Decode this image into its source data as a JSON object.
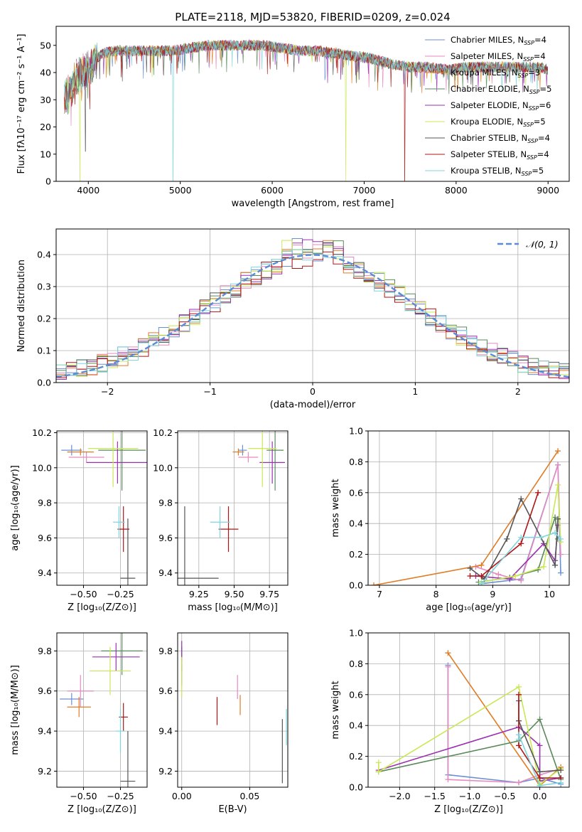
{
  "figure_title": "PLATE=2118, MJD=53820, FIBERID=0209, z=0.024",
  "colors": {
    "chabrier_miles": "#6a8fd3",
    "salpeter_miles": "#e58ac0",
    "kroupa_miles": "#e07b26",
    "chabrier_elodie": "#5a8a5a",
    "salpeter_elodie": "#9b30b0",
    "kroupa_elodie": "#c9e855",
    "chabrier_stelib": "#555555",
    "salpeter_stelib": "#b01515",
    "kroupa_stelib": "#7fd5dc",
    "gauss": "#5b8bd6"
  },
  "chart_data": [
    {
      "id": "spectrum",
      "type": "line",
      "title": "PLATE=2118, MJD=53820, FIBERID=0209, z=0.024",
      "xlabel": "wavelength [Angstrom, rest frame]",
      "ylabel": "Flux [fλ10⁻¹⁷ erg cm⁻² s⁻¹ A⁻¹]",
      "xlim": [
        3650,
        9230
      ],
      "ylim": [
        0,
        57
      ],
      "xticks": [
        4000,
        5000,
        6000,
        7000,
        8000,
        9000
      ],
      "yticks": [
        0,
        10,
        20,
        30,
        40,
        50
      ],
      "grid": false,
      "legend_position": "top-right",
      "series": [
        {
          "key": "chabrier_miles",
          "name": "Chabrier MILES, N",
          "sub": "SSP",
          "tail": "=4"
        },
        {
          "key": "salpeter_miles",
          "name": "Salpeter MILES, N",
          "sub": "SSP",
          "tail": "=4"
        },
        {
          "key": "kroupa_miles",
          "name": "Kroupa MILES, N",
          "sub": "SSP",
          "tail": "=3"
        },
        {
          "key": "chabrier_elodie",
          "name": "Chabrier ELODIE, N",
          "sub": "SSP",
          "tail": "=5"
        },
        {
          "key": "salpeter_elodie",
          "name": "Salpeter ELODIE, N",
          "sub": "SSP",
          "tail": "=6"
        },
        {
          "key": "kroupa_elodie",
          "name": "Kroupa ELODIE, N",
          "sub": "SSP",
          "tail": "=5"
        },
        {
          "key": "chabrier_stelib",
          "name": "Chabrier STELIB, N",
          "sub": "SSP",
          "tail": "=4"
        },
        {
          "key": "salpeter_stelib",
          "name": "Salpeter STELIB, N",
          "sub": "SSP",
          "tail": "=4"
        },
        {
          "key": "kroupa_stelib",
          "name": "Kroupa STELIB, N",
          "sub": "SSP",
          "tail": "=5"
        }
      ],
      "continuum": {
        "x": [
          3740,
          3850,
          3950,
          4050,
          4150,
          4300,
          4500,
          4700,
          4900,
          5100,
          5300,
          5500,
          5700,
          5900,
          6100,
          6300,
          6500,
          6700,
          6900,
          7100,
          7300,
          7500,
          7700,
          7900,
          8100,
          8300,
          8500,
          8700,
          8900,
          9000
        ],
        "y": [
          30,
          37,
          40,
          44,
          47,
          48,
          48,
          48,
          48,
          49,
          50,
          50,
          50,
          50,
          49,
          48,
          48,
          47,
          46,
          45,
          43,
          42,
          42,
          41,
          42,
          42,
          42,
          42,
          42,
          41
        ]
      },
      "dips": [
        {
          "series": "kroupa_elodie",
          "x": 3910,
          "y": 0
        },
        {
          "series": "chabrier_stelib",
          "x": 3970,
          "y": 11
        },
        {
          "series": "kroupa_stelib",
          "x": 4920,
          "y": 0
        },
        {
          "series": "kroupa_elodie",
          "x": 6800,
          "y": 0
        },
        {
          "series": "salpeter_stelib",
          "x": 7440,
          "y": 0
        }
      ]
    },
    {
      "id": "residuals",
      "type": "bar",
      "xlabel": "(data-model)/error",
      "ylabel": "Normed distribution",
      "xlim": [
        -2.5,
        2.5
      ],
      "ylim": [
        0,
        0.48
      ],
      "xticks": [
        -2,
        -1,
        0,
        1,
        2
      ],
      "yticks": [
        0.0,
        0.1,
        0.2,
        0.3,
        0.4
      ],
      "grid": true,
      "legend_position": "top-right",
      "legend": [
        {
          "label": "𝒩(0, 1)",
          "style": "dashed"
        }
      ],
      "bin_width": 0.1,
      "gaussian": {
        "mean": 0,
        "sigma": 1
      }
    },
    {
      "id": "age_vs_Z",
      "type": "scatter",
      "xlabel": "Z [log₁₀(Z/Z⊙)]",
      "ylabel": "age  [log₁₀(age/yr)]",
      "xlim": [
        -0.68,
        -0.07
      ],
      "ylim": [
        9.33,
        10.21
      ],
      "xticks": [
        -0.5,
        -0.25
      ],
      "yticks": [
        9.4,
        9.6,
        9.8,
        10.0,
        10.2
      ],
      "grid": true,
      "points": [
        {
          "series": "chabrier_miles",
          "x": -0.58,
          "y": 10.1,
          "xerr": 0.07,
          "yerr": 0.03
        },
        {
          "series": "salpeter_miles",
          "x": -0.48,
          "y": 10.06,
          "xerr": 0.12,
          "yerr": 0.03
        },
        {
          "series": "kroupa_miles",
          "x": -0.52,
          "y": 10.09,
          "xerr": 0.09,
          "yerr": 0.02
        },
        {
          "series": "chabrier_elodie",
          "x": -0.24,
          "y": 10.1,
          "xerr": 0.16,
          "yerr": 0.23
        },
        {
          "series": "salpeter_elodie",
          "x": -0.27,
          "y": 10.03,
          "xerr": 0.21,
          "yerr": 0.12
        },
        {
          "series": "kroupa_elodie",
          "x": -0.3,
          "y": 10.11,
          "xerr": 0.17,
          "yerr": 0.22
        },
        {
          "series": "chabrier_stelib",
          "x": -0.2,
          "y": 9.37,
          "xerr": 0.05,
          "yerr": 0.34
        },
        {
          "series": "salpeter_stelib",
          "x": -0.23,
          "y": 9.65,
          "xerr": 0.04,
          "yerr": 0.13
        },
        {
          "series": "kroupa_stelib",
          "x": -0.26,
          "y": 9.69,
          "xerr": 0.04,
          "yerr": 0.09
        }
      ]
    },
    {
      "id": "age_vs_mass",
      "type": "scatter",
      "xlabel": "mass [log₁₀(M/M⊙)]",
      "ylabel": "",
      "xlim": [
        9.1,
        9.88
      ],
      "ylim": [
        9.33,
        10.21
      ],
      "xticks": [
        9.25,
        9.5,
        9.75
      ],
      "yticks": [
        9.4,
        9.6,
        9.8,
        10.0,
        10.2
      ],
      "grid": true,
      "points": [
        {
          "series": "chabrier_miles",
          "x": 9.56,
          "y": 10.1,
          "xerr": 0.03,
          "yerr": 0.03
        },
        {
          "series": "salpeter_miles",
          "x": 9.6,
          "y": 10.06,
          "xerr": 0.07,
          "yerr": 0.03
        },
        {
          "series": "kroupa_miles",
          "x": 9.53,
          "y": 10.09,
          "xerr": 0.04,
          "yerr": 0.02
        },
        {
          "series": "chabrier_elodie",
          "x": 9.79,
          "y": 10.1,
          "xerr": 0.06,
          "yerr": 0.23
        },
        {
          "series": "salpeter_elodie",
          "x": 9.77,
          "y": 10.03,
          "xerr": 0.09,
          "yerr": 0.12
        },
        {
          "series": "kroupa_elodie",
          "x": 9.7,
          "y": 10.11,
          "xerr": 0.1,
          "yerr": 0.22
        },
        {
          "series": "chabrier_stelib",
          "x": 9.15,
          "y": 9.37,
          "xerr": 0.24,
          "yerr": 0.41
        },
        {
          "series": "salpeter_stelib",
          "x": 9.46,
          "y": 9.65,
          "xerr": 0.07,
          "yerr": 0.13
        },
        {
          "series": "kroupa_stelib",
          "x": 9.4,
          "y": 9.69,
          "xerr": 0.07,
          "yerr": 0.09
        }
      ]
    },
    {
      "id": "weight_vs_age",
      "type": "line",
      "xlabel": "age  [log₁₀(age/yr)]",
      "ylabel": "mass weight",
      "xlim": [
        6.8,
        10.35
      ],
      "ylim": [
        0,
        1
      ],
      "xticks": [
        7,
        8,
        9,
        10
      ],
      "yticks": [
        0.0,
        0.2,
        0.4,
        0.6,
        0.8,
        1.0
      ],
      "grid": true,
      "series": [
        {
          "series": "chabrier_miles",
          "x": [
            8.8,
            9.5,
            10.15,
            10.2
          ],
          "y": [
            0.01,
            0.04,
            0.78,
            0.08
          ]
        },
        {
          "series": "salpeter_miles",
          "x": [
            8.7,
            9.1,
            9.5,
            10.15,
            10.2
          ],
          "y": [
            0.12,
            0.07,
            0.03,
            0.78,
            0.2
          ]
        },
        {
          "series": "kroupa_miles",
          "x": [
            6.9,
            8.8,
            10.15
          ],
          "y": [
            0.0,
            0.13,
            0.87
          ]
        },
        {
          "series": "chabrier_elodie",
          "x": [
            8.75,
            9.3,
            9.8,
            10.1,
            10.15
          ],
          "y": [
            0.02,
            0.05,
            0.1,
            0.44,
            0.3
          ]
        },
        {
          "series": "salpeter_elodie",
          "x": [
            8.7,
            9.3,
            9.9,
            10.1,
            10.15
          ],
          "y": [
            0.06,
            0.04,
            0.27,
            0.16,
            0.39
          ]
        },
        {
          "series": "kroupa_elodie",
          "x": [
            8.8,
            9.4,
            9.9,
            10.15,
            10.2
          ],
          "y": [
            0.02,
            0.06,
            0.12,
            0.65,
            0.28
          ]
        },
        {
          "series": "chabrier_stelib",
          "x": [
            8.6,
            8.85,
            9.25,
            9.5,
            10.1,
            10.15
          ],
          "y": [
            0.11,
            0.04,
            0.3,
            0.56,
            0.13,
            0.43
          ]
        },
        {
          "series": "salpeter_stelib",
          "x": [
            8.6,
            8.8,
            9.5,
            9.8
          ],
          "y": [
            0.06,
            0.06,
            0.27,
            0.6
          ]
        },
        {
          "series": "kroupa_stelib",
          "x": [
            8.8,
            9.5,
            9.85,
            10.1,
            10.2
          ],
          "y": [
            0.01,
            0.31,
            0.31,
            0.34,
            0.3
          ]
        }
      ]
    },
    {
      "id": "mass_vs_Z",
      "type": "scatter",
      "xlabel": "Z [log₁₀(Z/Z⊙)]",
      "ylabel": "mass [log₁₀(M/M⊙)]",
      "xlim": [
        -0.68,
        -0.07
      ],
      "ylim": [
        9.12,
        9.89
      ],
      "xticks": [
        -0.5,
        -0.25
      ],
      "yticks": [
        9.2,
        9.4,
        9.6,
        9.8
      ],
      "grid": true,
      "points": [
        {
          "series": "chabrier_miles",
          "x": -0.58,
          "y": 9.56,
          "xerr": 0.08,
          "yerr": 0.03
        },
        {
          "series": "salpeter_miles",
          "x": -0.52,
          "y": 9.6,
          "xerr": 0.09,
          "yerr": 0.08
        },
        {
          "series": "kroupa_miles",
          "x": -0.53,
          "y": 9.52,
          "xerr": 0.08,
          "yerr": 0.05
        },
        {
          "series": "chabrier_elodie",
          "x": -0.24,
          "y": 9.8,
          "xerr": 0.14,
          "yerr": 0.12
        },
        {
          "series": "salpeter_elodie",
          "x": -0.28,
          "y": 9.77,
          "xerr": 0.16,
          "yerr": 0.07
        },
        {
          "series": "kroupa_elodie",
          "x": -0.32,
          "y": 9.7,
          "xerr": 0.14,
          "yerr": 0.12
        },
        {
          "series": "chabrier_stelib",
          "x": -0.2,
          "y": 9.15,
          "xerr": 0.05,
          "yerr": 0.25
        },
        {
          "series": "salpeter_stelib",
          "x": -0.23,
          "y": 9.47,
          "xerr": 0.03,
          "yerr": 0.07
        },
        {
          "series": "kroupa_stelib",
          "x": -0.25,
          "y": 9.4,
          "xerr": 0.03,
          "yerr": 0.11
        }
      ]
    },
    {
      "id": "mass_vs_EBV",
      "type": "scatter",
      "xlabel": "E(B-V)",
      "ylabel": "",
      "xlim": [
        -0.003,
        0.078
      ],
      "ylim": [
        9.12,
        9.89
      ],
      "xticks": [
        0.0,
        0.05
      ],
      "yticks": [
        9.2,
        9.4,
        9.6,
        9.8
      ],
      "grid": true,
      "points": [
        {
          "series": "chabrier_miles",
          "x": 0.0,
          "y": 9.68,
          "xerr": 0,
          "yerr": 0.05
        },
        {
          "series": "salpeter_miles",
          "x": 0.041,
          "y": 9.62,
          "xerr": 0,
          "yerr": 0.06
        },
        {
          "series": "kroupa_miles",
          "x": 0.043,
          "y": 9.53,
          "xerr": 0,
          "yerr": 0.05
        },
        {
          "series": "chabrier_elodie",
          "x": 0.0,
          "y": 9.76,
          "xerr": 0,
          "yerr": 0.06
        },
        {
          "series": "salpeter_elodie",
          "x": 0.0,
          "y": 9.8,
          "xerr": 0,
          "yerr": 0.05
        },
        {
          "series": "kroupa_elodie",
          "x": 0.0,
          "y": 9.67,
          "xerr": 0,
          "yerr": 0.1
        },
        {
          "series": "chabrier_stelib",
          "x": 0.074,
          "y": 9.3,
          "xerr": 0,
          "yerr": 0.16
        },
        {
          "series": "salpeter_stelib",
          "x": 0.026,
          "y": 9.5,
          "xerr": 0,
          "yerr": 0.07
        },
        {
          "series": "kroupa_stelib",
          "x": 0.077,
          "y": 9.42,
          "xerr": 0,
          "yerr": 0.09
        }
      ]
    },
    {
      "id": "weight_vs_Z",
      "type": "line",
      "xlabel": "Z [log₁₀(Z/Z⊙)]",
      "ylabel": "mass weight",
      "xlim": [
        -2.45,
        0.42
      ],
      "ylim": [
        0,
        1
      ],
      "xticks": [
        -2.0,
        -1.5,
        -1.0,
        -0.5,
        0.0
      ],
      "yticks": [
        0.0,
        0.2,
        0.4,
        0.6,
        0.8,
        1.0
      ],
      "grid": true,
      "series": [
        {
          "series": "chabrier_miles",
          "x": [
            -1.31,
            -1.31,
            -0.3,
            0.0,
            0.3
          ],
          "y": [
            0.79,
            0.08,
            0.03,
            0.06,
            0.02
          ]
        },
        {
          "series": "salpeter_miles",
          "x": [
            -1.31,
            -1.31,
            -0.3,
            0.0,
            0.3
          ],
          "y": [
            0.78,
            0.05,
            0.03,
            0.08,
            0.12
          ]
        },
        {
          "series": "kroupa_miles",
          "x": [
            -1.31,
            0.0,
            0.3
          ],
          "y": [
            0.87,
            0.01,
            0.13
          ]
        },
        {
          "series": "chabrier_elodie",
          "x": [
            -2.3,
            -0.3,
            0.0,
            0.3
          ],
          "y": [
            0.1,
            0.3,
            0.44,
            0.05
          ]
        },
        {
          "series": "salpeter_elodie",
          "x": [
            -2.3,
            -0.3,
            0.0,
            0.0,
            0.3
          ],
          "y": [
            0.11,
            0.39,
            0.27,
            0.04,
            0.06
          ]
        },
        {
          "series": "kroupa_elodie",
          "x": [
            -2.3,
            -2.3,
            -0.3,
            0.0,
            0.3
          ],
          "y": [
            0.16,
            0.1,
            0.65,
            0.02,
            0.12
          ]
        },
        {
          "series": "chabrier_stelib",
          "x": [
            -0.3,
            -0.3,
            0.0,
            0.3
          ],
          "y": [
            0.56,
            0.43,
            0.1,
            0.11
          ]
        },
        {
          "series": "salpeter_stelib",
          "x": [
            -0.3,
            -0.3,
            0.0,
            0.3
          ],
          "y": [
            0.6,
            0.27,
            0.06,
            0.06
          ]
        },
        {
          "series": "kroupa_stelib",
          "x": [
            -0.3,
            -0.3,
            0.0,
            0.3
          ],
          "y": [
            0.31,
            0.34,
            0.01,
            0.03
          ]
        }
      ]
    }
  ]
}
